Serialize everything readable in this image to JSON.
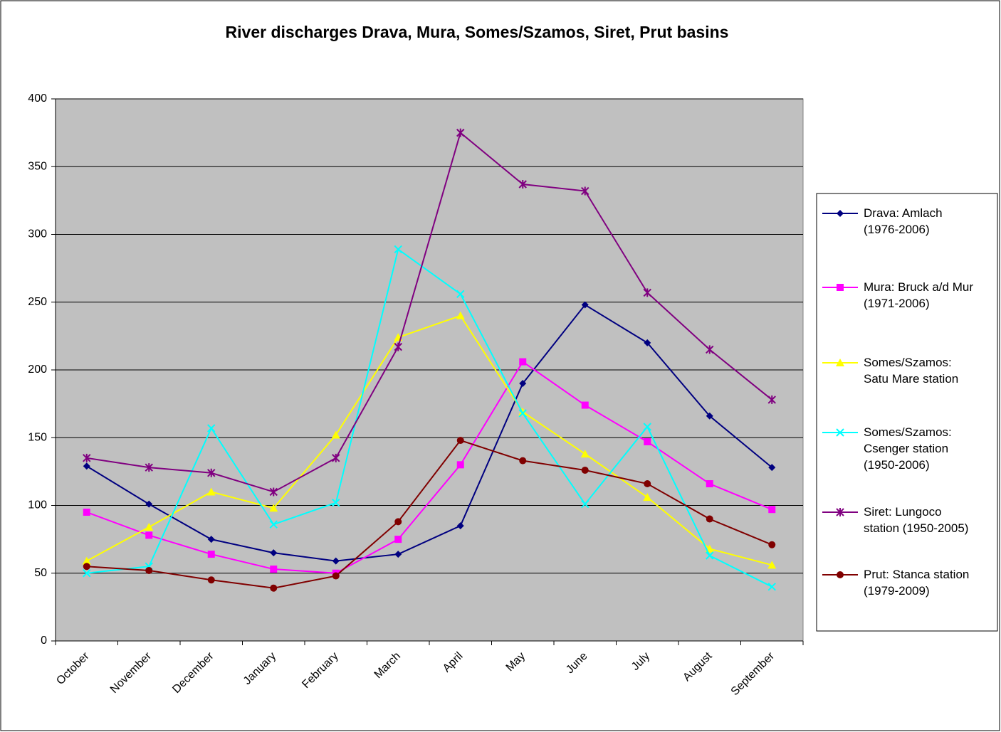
{
  "chart_data": {
    "type": "line",
    "title": "River discharges Drava, Mura, Somes/Szamos, Siret, Prut basins",
    "categories": [
      "October",
      "November",
      "December",
      "January",
      "February",
      "March",
      "April",
      "May",
      "June",
      "July",
      "August",
      "September"
    ],
    "ylim": [
      0,
      400
    ],
    "yticks": [
      0,
      50,
      100,
      150,
      200,
      250,
      300,
      350,
      400
    ],
    "grid": true,
    "legend": "right",
    "series": [
      {
        "name": "Drava: Amlach\n(1976-2006)",
        "color": "#000080",
        "marker": "diamond",
        "values": [
          129,
          101,
          75,
          65,
          59,
          64,
          85,
          190,
          248,
          220,
          166,
          128
        ]
      },
      {
        "name": "Mura: Bruck a/d Mur\n(1971-2006)",
        "color": "#ff00ff",
        "marker": "square",
        "values": [
          95,
          78,
          64,
          53,
          50,
          75,
          130,
          206,
          174,
          147,
          116,
          97
        ]
      },
      {
        "name": "Somes/Szamos:\nSatu Mare station",
        "color": "#ffff00",
        "marker": "triangle",
        "values": [
          59,
          84,
          110,
          98,
          152,
          224,
          240,
          169,
          138,
          106,
          68,
          56
        ]
      },
      {
        "name": "Somes/Szamos:\nCsenger station\n(1950-2006)",
        "color": "#00ffff",
        "marker": "x",
        "values": [
          50,
          55,
          157,
          86,
          102,
          289,
          256,
          168,
          101,
          158,
          63,
          40
        ]
      },
      {
        "name": "Siret: Lungoco\nstation (1950-2005)",
        "color": "#800080",
        "marker": "star",
        "values": [
          135,
          128,
          124,
          110,
          135,
          217,
          375,
          337,
          332,
          257,
          215,
          178
        ]
      },
      {
        "name": "Prut: Stanca station\n(1979-2009)",
        "color": "#800000",
        "marker": "circle",
        "values": [
          55,
          52,
          45,
          39,
          48,
          88,
          148,
          133,
          126,
          116,
          90,
          71
        ]
      }
    ]
  }
}
